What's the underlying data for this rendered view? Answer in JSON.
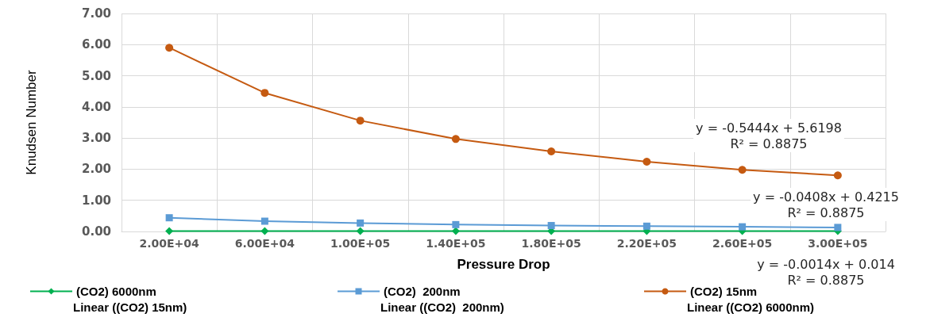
{
  "chart_data": {
    "type": "line",
    "xlabel": "Pressure Drop",
    "ylabel": "Knudsen Number",
    "categories": [
      "2.00E+04",
      "6.00E+04",
      "1.00E+05",
      "1.40E+05",
      "1.80E+05",
      "2.20E+05",
      "2.60E+05",
      "3.00E+05"
    ],
    "series": [
      {
        "name": "(CO2) 6000nm",
        "color": "#00b050",
        "marker": "diamond",
        "values": [
          0.01,
          0.01,
          0.01,
          0.01,
          0.01,
          0.01,
          0.01,
          0.01
        ]
      },
      {
        "name": "(CO2)  200nm",
        "color": "#5b9bd5",
        "marker": "square",
        "values": [
          0.44,
          0.33,
          0.27,
          0.22,
          0.19,
          0.17,
          0.15,
          0.13
        ]
      },
      {
        "name": "(CO2) 15nm",
        "color": "#c55a11",
        "marker": "circle",
        "values": [
          5.9,
          4.45,
          3.56,
          2.97,
          2.57,
          2.24,
          1.98,
          1.8
        ]
      }
    ],
    "ylim": [
      0,
      7
    ],
    "yticks": [
      {
        "value": 0,
        "label": "0.00"
      },
      {
        "value": 1,
        "label": "1.00"
      },
      {
        "value": 2,
        "label": "2.00"
      },
      {
        "value": 3,
        "label": "3.00"
      },
      {
        "value": 4,
        "label": "4.00"
      },
      {
        "value": 5,
        "label": "5.00"
      },
      {
        "value": 6,
        "label": "6.00"
      },
      {
        "value": 7,
        "label": "7.00"
      }
    ],
    "grid": true,
    "legend": "bottom",
    "annotations": [
      "y = -0.5444x + 5.6198\nR² = 0.8875",
      "y = -0.0408x + 0.4215\nR² = 0.8875",
      "y = -0.0014x + 0.014\nR² = 0.8875",
      "Linear ((CO2) 15nm)",
      "Linear ((CO2)  200nm)",
      "Linear ((CO2) 6000nm)"
    ]
  }
}
